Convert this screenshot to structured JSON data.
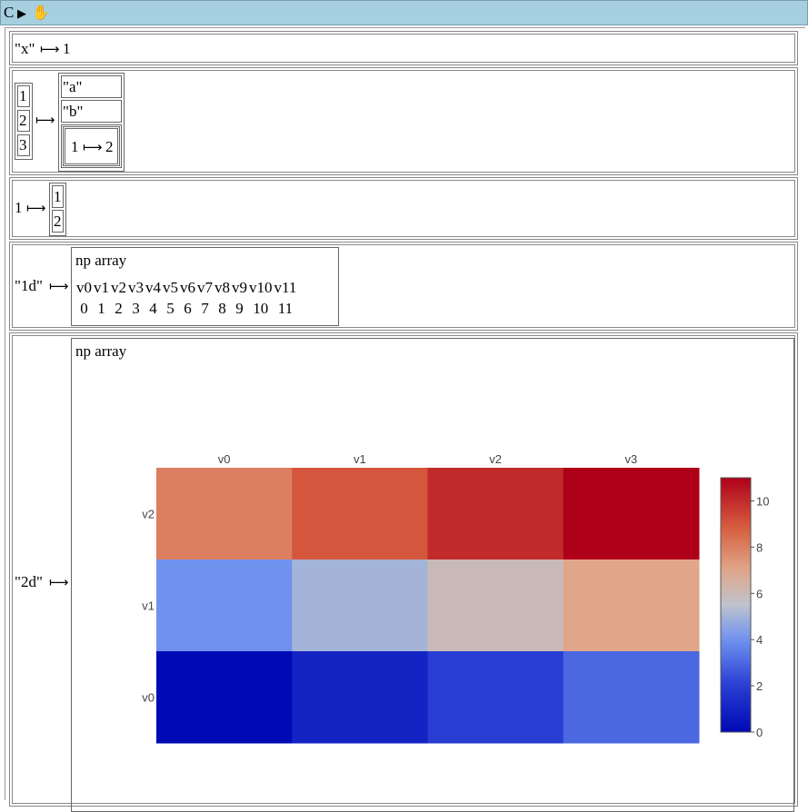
{
  "toolbar": {
    "c_label": "C",
    "play_icon": "▶",
    "hand_icon": "✋"
  },
  "arrow": "⟼",
  "rows": {
    "r1": {
      "key": "\"x\"",
      "value": "1"
    },
    "r2": {
      "keys": [
        "1",
        "2",
        "3"
      ],
      "values": [
        "\"a\"",
        "\"b\""
      ],
      "nested_key": "1",
      "nested_value": "2"
    },
    "r3": {
      "key": "1",
      "values": [
        "1",
        "2"
      ]
    },
    "r4": {
      "key": "\"1d\"",
      "title": "np array",
      "headers": [
        "v0",
        "v1",
        "v2",
        "v3",
        "v4",
        "v5",
        "v6",
        "v7",
        "v8",
        "v9",
        "v10",
        "v11"
      ],
      "values": [
        "0",
        "1",
        "2",
        "3",
        "4",
        "5",
        "6",
        "7",
        "8",
        "9",
        "10",
        "11"
      ]
    },
    "r5": {
      "key": "\"2d\"",
      "title": "np array"
    }
  },
  "chart_data": {
    "type": "heatmap",
    "x_labels": [
      "v0",
      "v1",
      "v2",
      "v3"
    ],
    "y_labels": [
      "v0",
      "v1",
      "v2"
    ],
    "values": [
      [
        0,
        1,
        2,
        3
      ],
      [
        4,
        5,
        6,
        7
      ],
      [
        8,
        9,
        10,
        11
      ]
    ],
    "colorscale": "coolwarm",
    "zlim": [
      0,
      11
    ],
    "colorbar_ticks": [
      0,
      2,
      4,
      6,
      8,
      10
    ],
    "legend": "right"
  }
}
